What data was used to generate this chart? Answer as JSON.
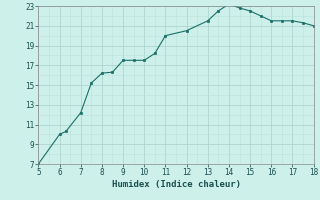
{
  "x": [
    5,
    6,
    6.3,
    7,
    7.5,
    8,
    8.5,
    9,
    9.5,
    10,
    10.5,
    11,
    12,
    13,
    13.5,
    14,
    14.5,
    15,
    15.5,
    16,
    16.5,
    17,
    17.5,
    18
  ],
  "y": [
    7,
    10,
    10.3,
    12.2,
    15.2,
    16.2,
    16.3,
    17.5,
    17.5,
    17.5,
    18.2,
    20.0,
    20.5,
    21.5,
    22.5,
    23.2,
    22.8,
    22.5,
    22.0,
    21.5,
    21.5,
    21.5,
    21.3,
    21.0
  ],
  "xlim": [
    5,
    18
  ],
  "ylim": [
    7,
    23
  ],
  "xticks": [
    5,
    6,
    7,
    8,
    9,
    10,
    11,
    12,
    13,
    14,
    15,
    16,
    17,
    18
  ],
  "yticks": [
    7,
    9,
    11,
    13,
    15,
    17,
    19,
    21,
    23
  ],
  "xlabel": "Humidex (Indice chaleur)",
  "line_color": "#1a7068",
  "marker_color": "#1a7068",
  "bg_color": "#cef0ea",
  "grid_major_color": "#a8cfc8",
  "grid_minor_color": "#bce0da",
  "tick_fontsize": 5.5,
  "xlabel_fontsize": 6.5
}
